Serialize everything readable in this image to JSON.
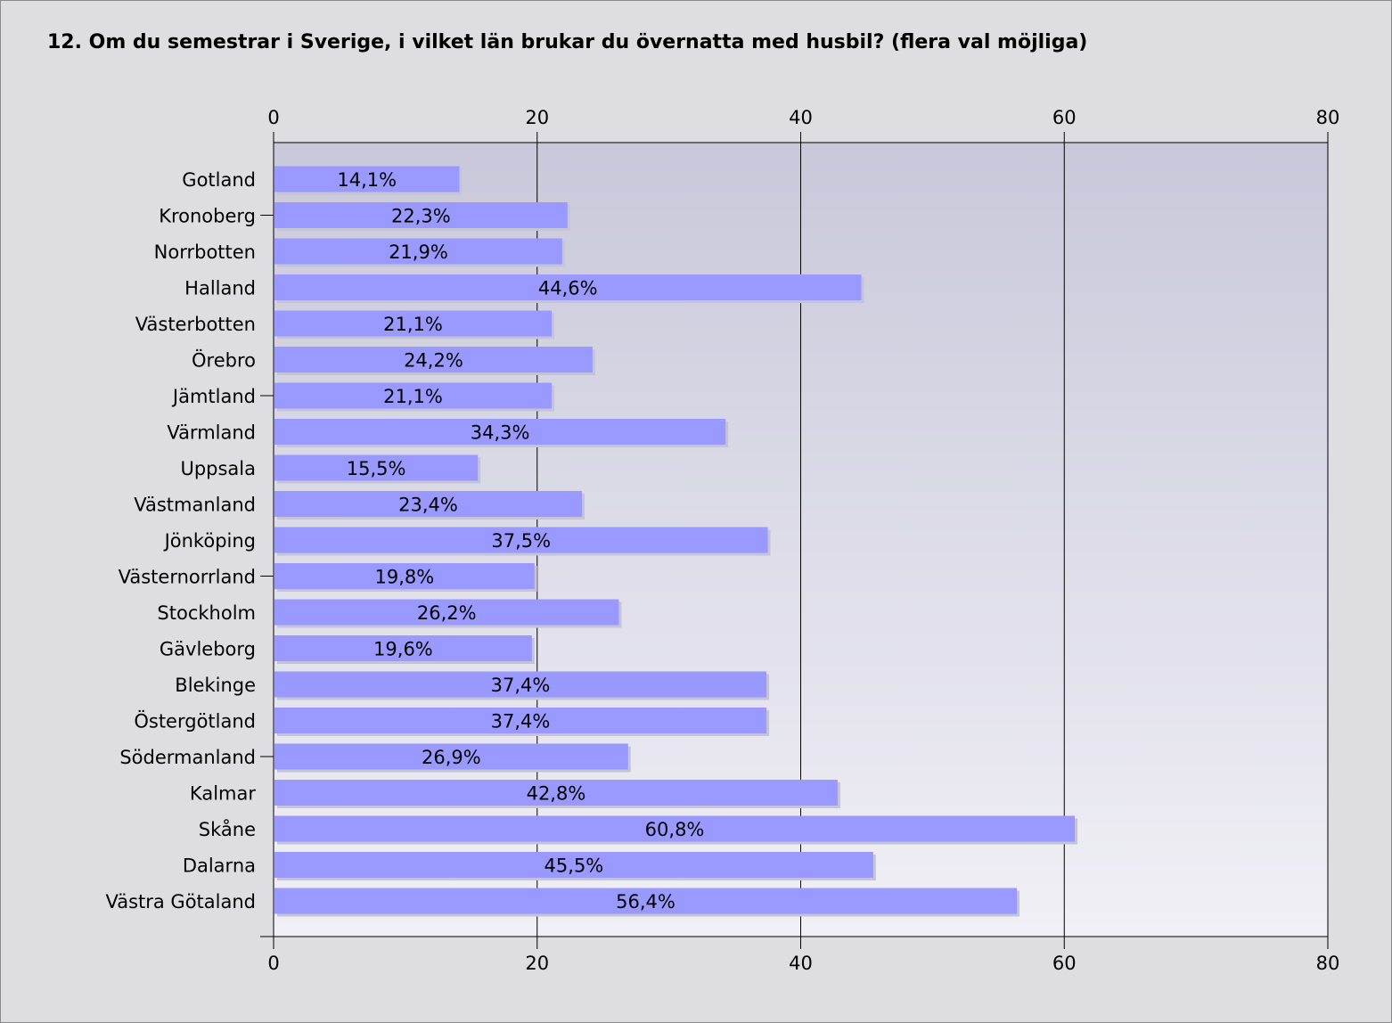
{
  "title": "12. Om du semestrar i Sverige, i vilket län brukar du övernatta med husbil? (flera val möjliga)",
  "chart_data": {
    "type": "bar",
    "orientation": "horizontal",
    "title": "12. Om du semestrar i Sverige, i vilket län brukar du övernatta med husbil? (flera val möjliga)",
    "xlim": [
      0,
      80
    ],
    "xticks": [
      0,
      20,
      40,
      60,
      80
    ],
    "categories": [
      "Gotland",
      "Kronoberg",
      "Norrbotten",
      "Halland",
      "Västerbotten",
      "Örebro",
      "Jämtland",
      "Värmland",
      "Uppsala",
      "Västmanland",
      "Jönköping",
      "Västernorrland",
      "Stockholm",
      "Gävleborg",
      "Blekinge",
      "Östergötland",
      "Södermanland",
      "Kalmar",
      "Skåne",
      "Dalarna",
      "Västra Götaland"
    ],
    "values": [
      14.1,
      22.3,
      21.9,
      44.6,
      21.1,
      24.2,
      21.1,
      34.3,
      15.5,
      23.4,
      37.5,
      19.8,
      26.2,
      19.6,
      37.4,
      37.4,
      26.9,
      42.8,
      60.8,
      45.5,
      56.4
    ],
    "value_labels": [
      "14,1%",
      "22,3%",
      "21,9%",
      "44,6%",
      "21,1%",
      "24,2%",
      "21,1%",
      "34,3%",
      "15,5%",
      "23,4%",
      "37,5%",
      "19,8%",
      "26,2%",
      "19,6%",
      "37,4%",
      "37,4%",
      "26,9%",
      "42,8%",
      "60,8%",
      "45,5%",
      "56,4%"
    ],
    "grid": true,
    "colors": {
      "bar": "#9999ff",
      "bar_shadow": "#c4c4d4",
      "plot_top": "#c9c8da",
      "plot_bottom": "#f1f0f6",
      "background": "#dedde2"
    }
  }
}
